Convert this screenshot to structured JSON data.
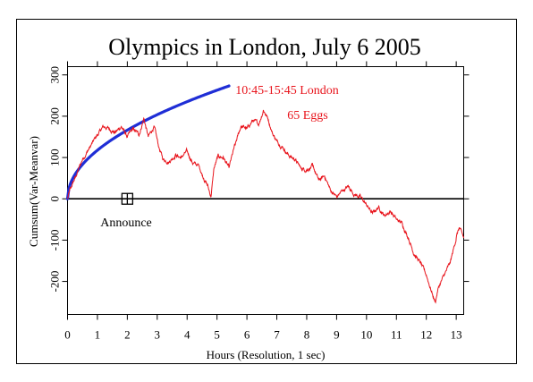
{
  "chart_data": {
    "type": "line",
    "title": "Olympics in London, July 6 2005",
    "xlabel": "Hours (Resolution, 1 sec)",
    "ylabel": "Cumsum(Var-Meanvar)",
    "xlim": [
      0,
      13.25
    ],
    "ylim": [
      -280,
      320
    ],
    "x_ticks": [
      0,
      1,
      2,
      3,
      4,
      5,
      6,
      7,
      8,
      9,
      10,
      11,
      12,
      13
    ],
    "y_ticks": [
      -200,
      -100,
      0,
      100,
      200,
      300
    ],
    "grid": false,
    "annotations": {
      "time_window": "10:45-15:45 London",
      "eggs": "65 Eggs",
      "announce_label": "Announce",
      "announce_x": 2,
      "announce_y": 0
    },
    "series": [
      {
        "role": "significance_envelope",
        "color": "#1f2ed6",
        "formula": "1.96*sqrt(x*3600)",
        "x_range": [
          0,
          5.4
        ]
      },
      {
        "role": "cumulative_deviation",
        "color": "#e8141c",
        "x": [
          0,
          0.1,
          0.25,
          0.5,
          0.75,
          1.0,
          1.2,
          1.4,
          1.6,
          1.8,
          2.0,
          2.2,
          2.4,
          2.55,
          2.7,
          2.9,
          3.05,
          3.2,
          3.4,
          3.6,
          3.8,
          4.0,
          4.2,
          4.4,
          4.55,
          4.7,
          4.8,
          4.9,
          5.05,
          5.2,
          5.4,
          5.6,
          5.8,
          6.0,
          6.2,
          6.4,
          6.55,
          6.7,
          6.85,
          7.0,
          7.2,
          7.4,
          7.6,
          7.8,
          8.0,
          8.2,
          8.4,
          8.6,
          8.8,
          9.0,
          9.2,
          9.4,
          9.6,
          9.8,
          10.0,
          10.2,
          10.4,
          10.6,
          10.8,
          11.0,
          11.2,
          11.4,
          11.6,
          11.8,
          12.0,
          12.2,
          12.3,
          12.4,
          12.6,
          12.8,
          13.0,
          13.1,
          13.25
        ],
        "y": [
          0,
          25,
          50,
          95,
          125,
          155,
          175,
          170,
          160,
          175,
          150,
          170,
          155,
          195,
          150,
          175,
          125,
          95,
          90,
          105,
          100,
          115,
          85,
          80,
          50,
          30,
          5,
          75,
          105,
          100,
          75,
          130,
          175,
          170,
          190,
          180,
          215,
          195,
          160,
          140,
          125,
          105,
          95,
          75,
          70,
          80,
          45,
          55,
          20,
          5,
          20,
          30,
          10,
          5,
          -15,
          -35,
          -20,
          -40,
          -30,
          -50,
          -60,
          -95,
          -135,
          -155,
          -185,
          -230,
          -250,
          -215,
          -185,
          -155,
          -95,
          -70,
          -95
        ]
      }
    ]
  }
}
